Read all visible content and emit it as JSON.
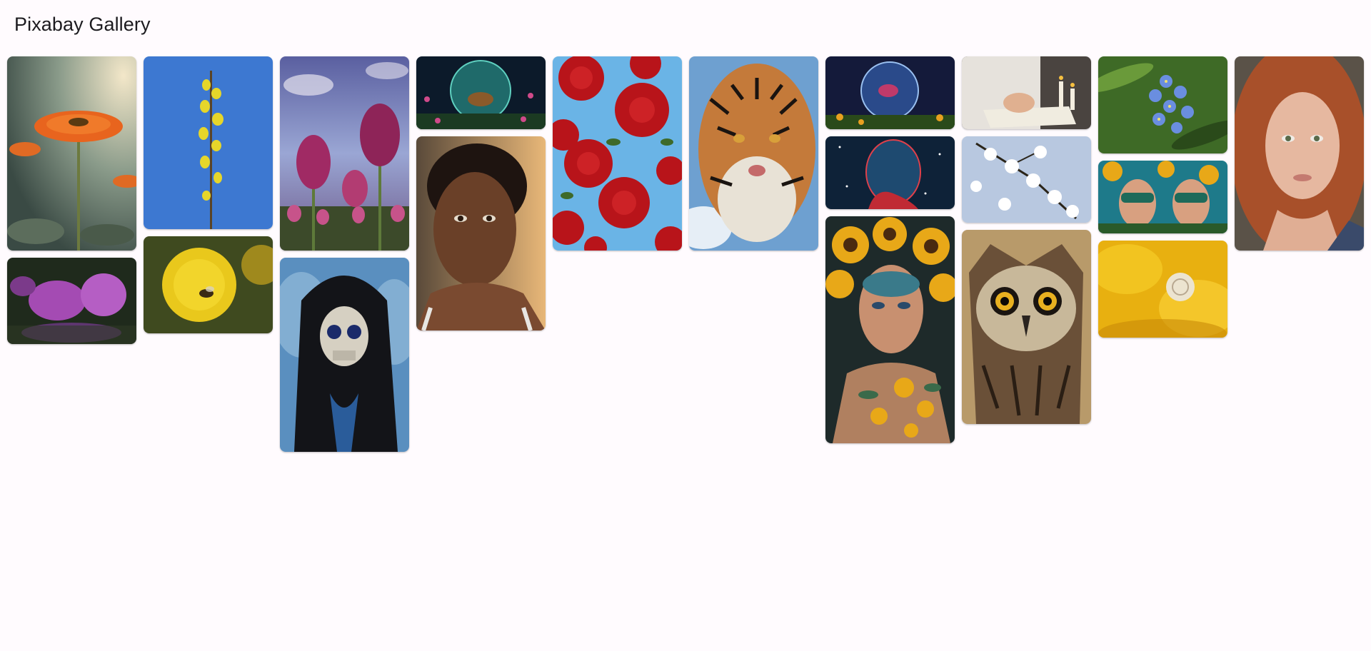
{
  "app": {
    "title": "Pixabay Gallery"
  },
  "gallery": {
    "columns": [
      {
        "tiles": [
          {
            "name": "orange-gerbera-flower-image"
          },
          {
            "name": "purple-magnolia-flowers-image"
          }
        ]
      },
      {
        "tiles": [
          {
            "name": "yellow-forsythia-branch-image"
          },
          {
            "name": "dandelion-with-bee-image"
          }
        ]
      },
      {
        "tiles": [
          {
            "name": "pink-tulips-sky-image"
          },
          {
            "name": "hooded-skull-reaper-image"
          }
        ]
      },
      {
        "tiles": [
          {
            "name": "deer-on-globe-fantasy-image"
          },
          {
            "name": "young-girl-portrait-image"
          }
        ]
      },
      {
        "tiles": [
          {
            "name": "red-roses-pattern-image"
          }
        ]
      },
      {
        "tiles": [
          {
            "name": "tiger-portrait-image"
          }
        ]
      },
      {
        "tiles": [
          {
            "name": "bird-in-glass-globe-image"
          },
          {
            "name": "cosmic-woman-profile-image"
          },
          {
            "name": "sunflower-crowned-woman-image"
          }
        ]
      },
      {
        "tiles": [
          {
            "name": "praying-hands-bible-candles-image"
          },
          {
            "name": "white-blossom-branch-image"
          },
          {
            "name": "owl-portrait-image"
          }
        ]
      },
      {
        "tiles": [
          {
            "name": "blue-forget-me-not-flowers-image"
          },
          {
            "name": "masked-twins-sunflowers-image"
          },
          {
            "name": "snail-on-yellow-flower-image"
          }
        ]
      },
      {
        "tiles": [
          {
            "name": "red-haired-woman-portrait-image"
          }
        ]
      }
    ]
  }
}
